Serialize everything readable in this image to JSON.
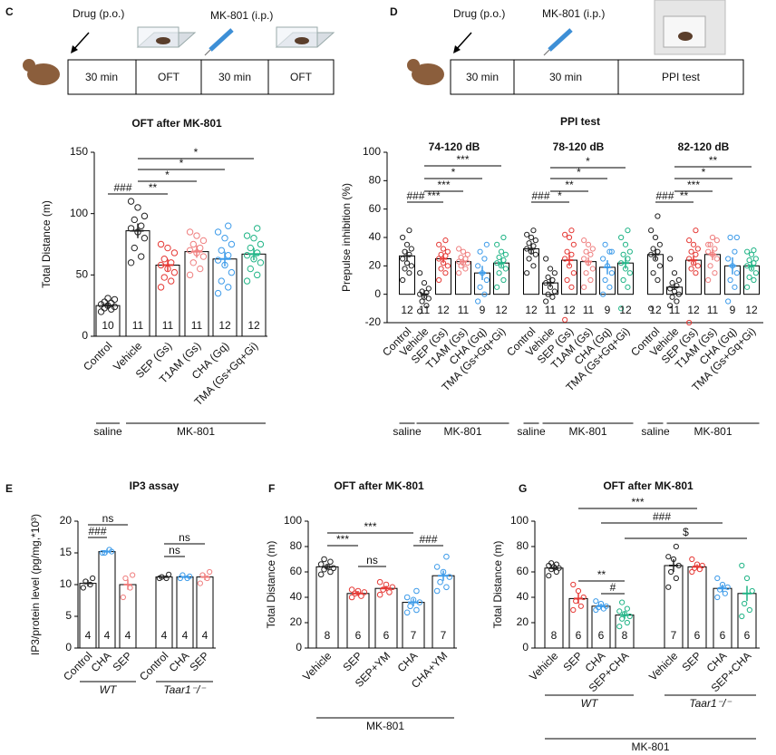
{
  "panels": [
    "C",
    "D",
    "E",
    "F",
    "G"
  ],
  "schematics": [
    {
      "drug": "Drug (p.o.)",
      "challenge": "MK-801 (i.p.)",
      "steps": [
        "30 min",
        "OFT",
        "30 min",
        "OFT"
      ]
    },
    {
      "drug": "Drug (p.o.)",
      "challenge": "MK-801 (i.p.)",
      "steps": [
        "30 min",
        "30 min",
        "PPI test"
      ]
    }
  ],
  "chart_data": [
    {
      "type": "bar",
      "title": "OFT after MK-801",
      "y_label": "Total Distance (m)",
      "categories": [
        "Control",
        "Vehicle",
        "SEP (Gs)",
        "T1AM (Gs)",
        "CHA (Gq)",
        "TMA (Gs+Gq+Gi)"
      ],
      "colors": [
        "#222222",
        "#222222",
        "#e53935",
        "#ef7f7f",
        "#3d9be9",
        "#20b486"
      ],
      "values": [
        25,
        86,
        58,
        69,
        63,
        67
      ],
      "errors": [
        2,
        6,
        5,
        5,
        6,
        5
      ],
      "n": [
        10,
        11,
        11,
        11,
        12,
        12
      ],
      "points": [
        [
          20,
          22,
          23,
          24,
          25,
          26,
          27,
          28,
          30,
          31
        ],
        [
          60,
          65,
          72,
          80,
          85,
          88,
          90,
          95,
          98,
          105,
          110
        ],
        [
          40,
          45,
          48,
          52,
          55,
          58,
          60,
          63,
          68,
          72,
          75
        ],
        [
          50,
          55,
          60,
          65,
          68,
          70,
          72,
          75,
          78,
          82,
          85
        ],
        [
          35,
          40,
          45,
          52,
          58,
          62,
          66,
          70,
          75,
          80,
          85,
          90
        ],
        [
          45,
          50,
          55,
          60,
          63,
          66,
          68,
          72,
          75,
          80,
          82,
          88
        ]
      ],
      "ylim": [
        0,
        150
      ],
      "yticks": [
        0,
        50,
        100,
        150
      ],
      "significance": [
        {
          "pair": [
            0,
            1
          ],
          "label": "###"
        },
        {
          "pair": [
            1,
            2
          ],
          "label": "**"
        },
        {
          "pair": [
            1,
            3
          ],
          "label": "*"
        },
        {
          "pair": [
            1,
            4
          ],
          "label": "*"
        },
        {
          "pair": [
            1,
            5
          ],
          "label": "*"
        }
      ],
      "groups": [
        {
          "label": "saline",
          "span": [
            0,
            0
          ]
        },
        {
          "label": "MK-801",
          "span": [
            1,
            5
          ]
        }
      ]
    },
    {
      "type": "bar",
      "title": "PPI test",
      "y_label": "Prepulse inhibition (%)",
      "categories": [
        "Control",
        "Vehicle",
        "SEP (Gs)",
        "T1AM (Gs)",
        "CHA (Gq)",
        "TMA (Gs+Gq+Gi)"
      ],
      "colors": [
        "#222222",
        "#222222",
        "#e53935",
        "#ef7f7f",
        "#3d9be9",
        "#20b486"
      ],
      "ylim": [
        -20,
        100
      ],
      "yticks": [
        -20,
        0,
        20,
        40,
        60,
        80,
        100
      ],
      "groups": [
        {
          "label": "saline",
          "span": [
            0,
            0
          ]
        },
        {
          "label": "MK-801",
          "span": [
            1,
            5
          ]
        }
      ],
      "facets": [
        {
          "title": "74-120 dB",
          "values": [
            27,
            0,
            25,
            23,
            15,
            22
          ],
          "errors": [
            4,
            3,
            3,
            2,
            5,
            3
          ],
          "n": [
            12,
            11,
            12,
            11,
            9,
            12
          ],
          "points": [
            [
              10,
              15,
              18,
              20,
              22,
              25,
              28,
              30,
              32,
              35,
              40,
              45
            ],
            [
              -12,
              -8,
              -5,
              -3,
              -2,
              0,
              1,
              2,
              4,
              8,
              15
            ],
            [
              10,
              15,
              18,
              20,
              22,
              25,
              27,
              28,
              30,
              32,
              35,
              38
            ],
            [
              15,
              18,
              20,
              22,
              22,
              23,
              25,
              26,
              28,
              30,
              32
            ],
            [
              -5,
              0,
              5,
              10,
              15,
              20,
              25,
              30,
              35
            ],
            [
              5,
              10,
              15,
              18,
              20,
              22,
              24,
              26,
              28,
              30,
              35,
              40
            ]
          ],
          "significance": [
            {
              "pair": [
                0,
                1
              ],
              "label": "###"
            },
            {
              "pair": [
                1,
                2
              ],
              "label": "***"
            },
            {
              "pair": [
                1,
                3
              ],
              "label": "***"
            },
            {
              "pair": [
                1,
                4
              ],
              "label": "*"
            },
            {
              "pair": [
                1,
                5
              ],
              "label": "***"
            }
          ]
        },
        {
          "title": "78-120 dB",
          "values": [
            32,
            8,
            24,
            23,
            19,
            22
          ],
          "errors": [
            4,
            3,
            4,
            3,
            5,
            4
          ],
          "n": [
            12,
            11,
            12,
            11,
            9,
            12
          ],
          "points": [
            [
              15,
              20,
              25,
              28,
              30,
              32,
              34,
              36,
              38,
              40,
              42,
              45
            ],
            [
              -5,
              -2,
              0,
              2,
              5,
              8,
              10,
              12,
              15,
              18,
              25
            ],
            [
              -18,
              5,
              10,
              15,
              20,
              25,
              28,
              30,
              35,
              40,
              42,
              45
            ],
            [
              5,
              10,
              15,
              18,
              22,
              25,
              28,
              30,
              32,
              35,
              38
            ],
            [
              0,
              5,
              10,
              15,
              20,
              25,
              30,
              35,
              30
            ],
            [
              -10,
              5,
              10,
              15,
              18,
              22,
              25,
              28,
              30,
              35,
              40,
              45
            ]
          ],
          "significance": [
            {
              "pair": [
                0,
                1
              ],
              "label": "###"
            },
            {
              "pair": [
                1,
                2
              ],
              "label": "*"
            },
            {
              "pair": [
                1,
                3
              ],
              "label": "**"
            },
            {
              "pair": [
                1,
                4
              ],
              "label": "*"
            },
            {
              "pair": [
                1,
                5
              ],
              "label": "*"
            }
          ]
        },
        {
          "title": "82-120 dB",
          "values": [
            28,
            5,
            24,
            28,
            20,
            20
          ],
          "errors": [
            4,
            2,
            3,
            4,
            6,
            3
          ],
          "n": [
            12,
            11,
            12,
            11,
            9,
            12
          ],
          "points": [
            [
              -10,
              10,
              15,
              20,
              25,
              28,
              30,
              32,
              35,
              40,
              45,
              55
            ],
            [
              -8,
              -5,
              -2,
              0,
              2,
              4,
              6,
              8,
              10,
              15,
              25
            ],
            [
              -20,
              15,
              18,
              20,
              22,
              25,
              28,
              30,
              32,
              35,
              38,
              45
            ],
            [
              10,
              15,
              20,
              25,
              28,
              30,
              32,
              35,
              38,
              40,
              35
            ],
            [
              -5,
              5,
              10,
              15,
              20,
              25,
              30,
              40,
              40
            ],
            [
              5,
              10,
              12,
              15,
              18,
              20,
              22,
              24,
              25,
              28,
              30,
              31
            ]
          ],
          "significance": [
            {
              "pair": [
                0,
                1
              ],
              "label": "###"
            },
            {
              "pair": [
                1,
                2
              ],
              "label": "**"
            },
            {
              "pair": [
                1,
                3
              ],
              "label": "***"
            },
            {
              "pair": [
                1,
                4
              ],
              "label": "*"
            },
            {
              "pair": [
                1,
                5
              ],
              "label": "**"
            }
          ]
        }
      ]
    },
    {
      "type": "bar",
      "title": "IP3  assay",
      "y_label": "IP3/protein level (pg/mg,*10³)",
      "categories": [
        "Control",
        "CHA",
        "SEP",
        "Control",
        "CHA",
        "SEP"
      ],
      "colors": [
        "#222222",
        "#3d9be9",
        "#ef7f7f",
        "#222222",
        "#3d9be9",
        "#ef7f7f"
      ],
      "values": [
        10.2,
        15.2,
        10,
        11.2,
        11.2,
        11.2
      ],
      "errors": [
        0.5,
        0.4,
        0.8,
        0.2,
        0.2,
        0.5
      ],
      "n": [
        4,
        4,
        4,
        4,
        4,
        4
      ],
      "points": [
        [
          9.5,
          10,
          10.5,
          11
        ],
        [
          15,
          15.5,
          15,
          15.2
        ],
        [
          8,
          9.5,
          11,
          11.5
        ],
        [
          11,
          11,
          11.2,
          11.6
        ],
        [
          11,
          11,
          11.5,
          11.3
        ],
        [
          10.2,
          11,
          11.5,
          12
        ]
      ],
      "ylim": [
        0,
        20
      ],
      "yticks": [
        0,
        5,
        10,
        15,
        20
      ],
      "significance": [
        {
          "pair": [
            0,
            1
          ],
          "label": "###"
        },
        {
          "pair": [
            0,
            2
          ],
          "label": "ns"
        },
        {
          "pair": [
            3,
            4
          ],
          "label": "ns"
        },
        {
          "pair": [
            3,
            5
          ],
          "label": "ns"
        }
      ],
      "groups": [
        {
          "label": "WT",
          "span": [
            0,
            2
          ]
        },
        {
          "label": "Taar1⁻/⁻",
          "span": [
            3,
            5
          ]
        }
      ]
    },
    {
      "type": "bar",
      "title": "OFT after MK-801",
      "y_label": "Total Distance (m)",
      "categories": [
        "Vehicle",
        "SEP",
        "SEP+YM",
        "CHA",
        "CHA+YM"
      ],
      "colors": [
        "#222222",
        "#e53935",
        "#e53935",
        "#3d9be9",
        "#3d9be9"
      ],
      "values": [
        64,
        43,
        47,
        36,
        57
      ],
      "errors": [
        2,
        2,
        2,
        3,
        4
      ],
      "n": [
        8,
        6,
        6,
        7,
        7
      ],
      "points": [
        [
          58,
          60,
          62,
          63,
          64,
          66,
          68,
          70
        ],
        [
          40,
          41,
          43,
          44,
          45,
          46
        ],
        [
          42,
          44,
          46,
          48,
          50,
          52
        ],
        [
          28,
          30,
          33,
          36,
          38,
          40,
          45
        ],
        [
          45,
          48,
          52,
          56,
          60,
          64,
          72
        ]
      ],
      "ylim": [
        0,
        100
      ],
      "yticks": [
        0,
        20,
        40,
        60,
        80,
        100
      ],
      "significance": [
        {
          "pair": [
            0,
            1
          ],
          "label": "***"
        },
        {
          "pair": [
            0,
            3
          ],
          "label": "***"
        },
        {
          "pair": [
            1,
            2
          ],
          "label": "ns"
        },
        {
          "pair": [
            3,
            4
          ],
          "label": "###"
        }
      ],
      "groups": [
        {
          "label": "MK-801",
          "span": [
            0,
            4
          ]
        }
      ]
    },
    {
      "type": "bar",
      "title": "OFT after MK-801",
      "y_label": "Total Distance (m)",
      "categories": [
        "Vehicle",
        "SEP",
        "CHA",
        "SEP+CHA",
        "Vehicle",
        "SEP",
        "CHA",
        "SEP+CHA"
      ],
      "colors": [
        "#222222",
        "#e53935",
        "#3d9be9",
        "#20b486",
        "#222222",
        "#e53935",
        "#3d9be9",
        "#20b486"
      ],
      "values": [
        63,
        39,
        33,
        26,
        65,
        64,
        47,
        43
      ],
      "errors": [
        2,
        4,
        2,
        3,
        5,
        2,
        3,
        6
      ],
      "n": [
        8,
        6,
        6,
        8,
        7,
        6,
        6,
        6
      ],
      "points": [
        [
          57,
          60,
          62,
          63,
          64,
          65,
          66,
          67
        ],
        [
          30,
          33,
          37,
          40,
          45,
          50
        ],
        [
          30,
          31,
          32,
          33,
          35,
          37
        ],
        [
          17,
          20,
          23,
          25,
          27,
          29,
          31,
          36
        ],
        [
          48,
          55,
          60,
          65,
          70,
          72,
          80
        ],
        [
          60,
          62,
          63,
          65,
          66,
          70
        ],
        [
          40,
          43,
          46,
          48,
          50,
          55
        ],
        [
          25,
          30,
          35,
          45,
          55,
          65
        ]
      ],
      "ylim": [
        0,
        100
      ],
      "yticks": [
        0,
        20,
        40,
        60,
        80,
        100
      ],
      "significance": [
        {
          "pair": [
            1,
            5
          ],
          "label": "***"
        },
        {
          "pair": [
            2,
            6
          ],
          "label": "###"
        },
        {
          "pair": [
            3,
            7
          ],
          "label": "$"
        },
        {
          "pair": [
            1,
            3
          ],
          "label": "**"
        },
        {
          "pair": [
            2,
            3
          ],
          "label": "#"
        }
      ],
      "groups": [
        {
          "label": "WT",
          "span": [
            0,
            3
          ]
        },
        {
          "label": "Taar1⁻/⁻",
          "span": [
            4,
            7
          ]
        }
      ],
      "outer_groups": [
        {
          "label": "MK-801",
          "span": [
            0,
            7
          ]
        }
      ]
    }
  ]
}
